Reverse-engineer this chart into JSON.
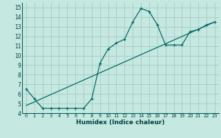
{
  "xlabel": "Humidex (Indice chaleur)",
  "ylabel": "",
  "background_color": "#c5e8e0",
  "grid_color": "#aacfc8",
  "line_color": "#006868",
  "xlim": [
    -0.5,
    23.5
  ],
  "ylim": [
    4,
    15.5
  ],
  "xticks": [
    0,
    1,
    2,
    3,
    4,
    5,
    6,
    7,
    8,
    9,
    10,
    11,
    12,
    13,
    14,
    15,
    16,
    17,
    18,
    19,
    20,
    21,
    22,
    23
  ],
  "yticks": [
    4,
    5,
    6,
    7,
    8,
    9,
    10,
    11,
    12,
    13,
    14,
    15
  ],
  "curve1_x": [
    0,
    1,
    2,
    3,
    4,
    5,
    6,
    7,
    8,
    9,
    10,
    11,
    12,
    13,
    14,
    15,
    16,
    17,
    18,
    19,
    20,
    21,
    22,
    23
  ],
  "curve1_y": [
    6.5,
    5.5,
    4.5,
    4.5,
    4.5,
    4.5,
    4.5,
    4.5,
    5.5,
    9.2,
    10.7,
    11.3,
    11.7,
    13.5,
    14.9,
    14.6,
    13.2,
    11.1,
    11.1,
    11.1,
    12.5,
    12.7,
    13.2,
    13.5
  ],
  "curve2_x": [
    0,
    23
  ],
  "curve2_y": [
    4.8,
    13.5
  ]
}
